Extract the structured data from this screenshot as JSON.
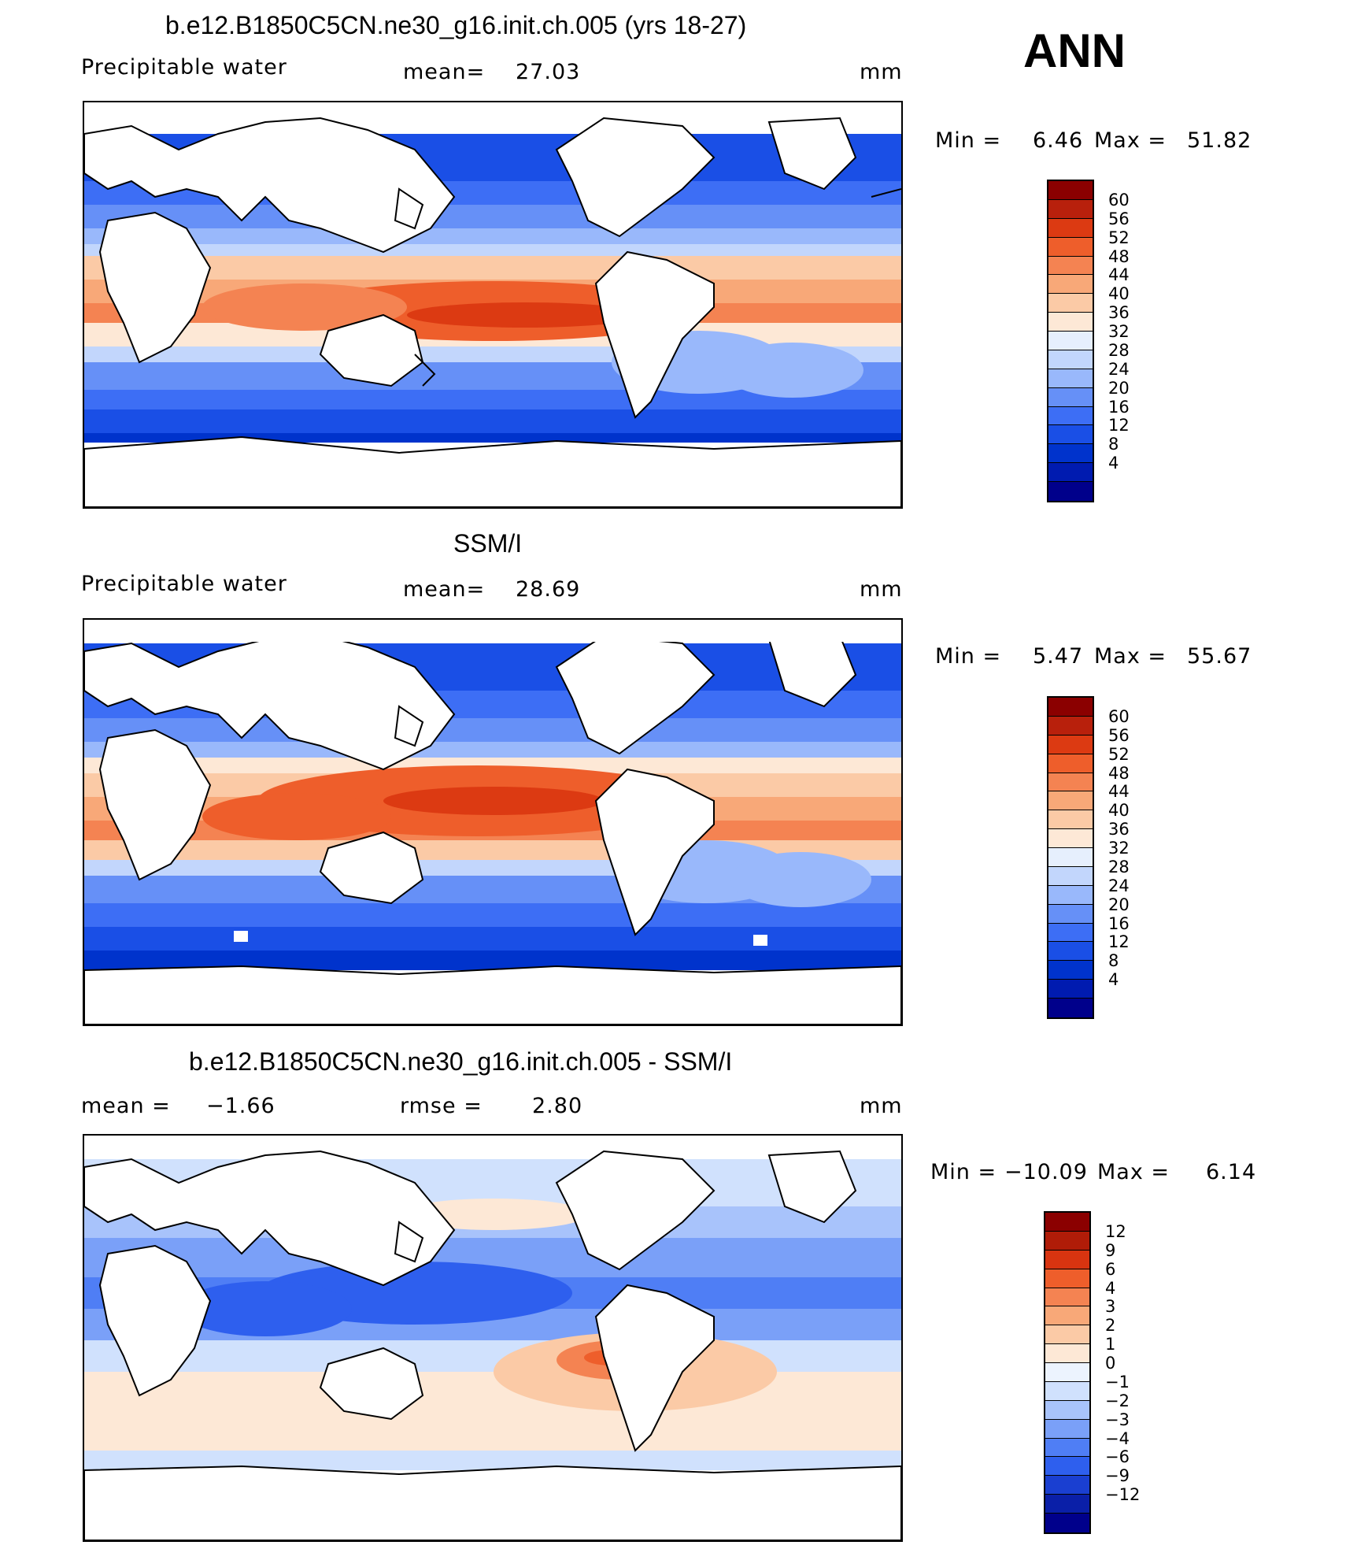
{
  "season": "ANN",
  "colors": {
    "abs": [
      "#00008b",
      "#001bb0",
      "#0033cc",
      "#1a4fe6",
      "#3d6ef5",
      "#6690f7",
      "#99b8fb",
      "#c2d6fc",
      "#e6effd",
      "#fde8d6",
      "#fbcaa6",
      "#f8a878",
      "#f48352",
      "#ee5e2b",
      "#dc3a12",
      "#b8200c",
      "#8b0000"
    ],
    "diff": [
      "#00008b",
      "#0a1fa8",
      "#1a3fd1",
      "#2e5fee",
      "#4f7ef5",
      "#7aa0f8",
      "#a8c3fb",
      "#d0e1fd",
      "#ecf3fe",
      "#fde8d6",
      "#fbcaa6",
      "#f8a878",
      "#f48352",
      "#ee5e2b",
      "#d83410",
      "#b01c08",
      "#8b0000"
    ]
  },
  "panels": [
    {
      "title": "b.e12.B1850C5CN.ne30_g16.init.ch.005 (yrs 18-27)",
      "left_label": "Precipitable water",
      "mid_label": "mean=",
      "mid_value": "27.03",
      "units": "mm",
      "min_label": "Min =",
      "min_value": "6.46",
      "max_label": "Max =",
      "max_value": "51.82",
      "ticks": [
        "60",
        "56",
        "52",
        "48",
        "44",
        "40",
        "36",
        "32",
        "28",
        "24",
        "20",
        "16",
        "12",
        "8",
        "4"
      ]
    },
    {
      "title": "SSM/I",
      "left_label": "Precipitable water",
      "mid_label": "mean=",
      "mid_value": "28.69",
      "units": "mm",
      "min_label": "Min =",
      "min_value": "5.47",
      "max_label": "Max =",
      "max_value": "55.67",
      "ticks": [
        "60",
        "56",
        "52",
        "48",
        "44",
        "40",
        "36",
        "32",
        "28",
        "24",
        "20",
        "16",
        "12",
        "8",
        "4"
      ]
    },
    {
      "title": "b.e12.B1850C5CN.ne30_g16.init.ch.005 - SSM/I",
      "left_label": "mean =",
      "left_value": "−1.66",
      "mid_label": "rmse =",
      "mid_value": "2.80",
      "units": "mm",
      "min_label": "Min =",
      "min_value": "−10.09",
      "max_label": "Max =",
      "max_value": "6.14",
      "ticks": [
        "12",
        "9",
        "6",
        "4",
        "3",
        "2",
        "1",
        "0",
        "−1",
        "−2",
        "−3",
        "−4",
        "−6",
        "−9",
        "−12"
      ]
    }
  ]
}
